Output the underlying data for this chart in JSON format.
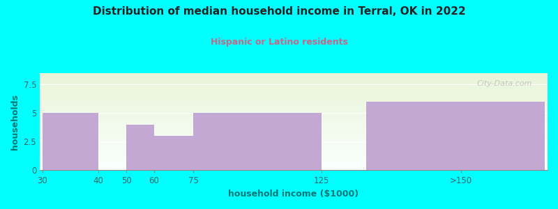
{
  "title": "Distribution of median household income in Terral, OK in 2022",
  "subtitle": "Hispanic or Latino residents",
  "xlabel": "household income ($1000)",
  "ylabel": "households",
  "categories": [
    "30",
    "40",
    "50",
    "60",
    "75",
    "125",
    ">150"
  ],
  "values": [
    5,
    0,
    4,
    3,
    5,
    0,
    6
  ],
  "bar_color": "#C4A8D4",
  "background_color": "#00FFFF",
  "plot_bg_top": "#E8F5D8",
  "plot_bg_bottom": "#FAFFFE",
  "ylim": [
    0,
    8.5
  ],
  "yticks": [
    0,
    2.5,
    5,
    7.5
  ],
  "title_color": "#222222",
  "subtitle_color": "#CC6688",
  "axis_label_color": "#007777",
  "watermark": "City-Data.com",
  "tick_label_color": "#336666"
}
